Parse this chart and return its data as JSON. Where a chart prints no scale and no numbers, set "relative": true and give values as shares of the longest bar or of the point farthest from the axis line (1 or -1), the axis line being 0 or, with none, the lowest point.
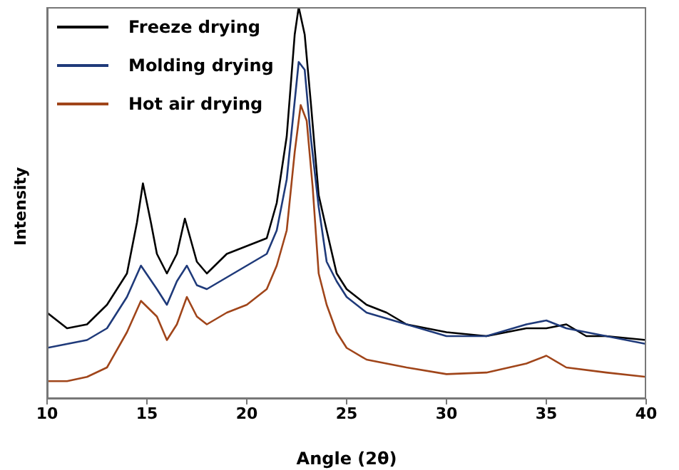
{
  "chart_data": {
    "type": "line",
    "relative": true,
    "xlabel": "Angle (2θ)",
    "ylabel": "Intensity",
    "xlim": [
      10,
      40
    ],
    "xticks": [
      10,
      15,
      20,
      25,
      30,
      35,
      40
    ],
    "legend": "top left",
    "marker": "none",
    "line_style": "solid",
    "series": [
      {
        "name": "Freeze drying",
        "color": "#000000",
        "x": [
          10,
          11,
          12,
          13,
          14,
          14.5,
          14.8,
          15.2,
          15.5,
          16,
          16.5,
          16.9,
          17.5,
          18,
          19,
          20,
          21,
          21.5,
          22,
          22.4,
          22.6,
          22.9,
          23.2,
          23.6,
          24,
          24.5,
          25,
          26,
          27,
          28,
          30,
          32,
          34,
          35,
          36,
          37,
          38,
          40
        ],
        "values": [
          0.22,
          0.18,
          0.19,
          0.24,
          0.32,
          0.45,
          0.55,
          0.45,
          0.37,
          0.32,
          0.37,
          0.46,
          0.35,
          0.32,
          0.37,
          0.39,
          0.41,
          0.5,
          0.67,
          0.93,
          1.0,
          0.93,
          0.76,
          0.52,
          0.43,
          0.32,
          0.28,
          0.24,
          0.22,
          0.19,
          0.17,
          0.16,
          0.18,
          0.18,
          0.19,
          0.16,
          0.16,
          0.15
        ]
      },
      {
        "name": "Molding drying",
        "color": "#1f3a7a",
        "x": [
          10,
          11,
          12,
          13,
          14,
          14.7,
          15.5,
          16,
          16.5,
          17,
          17.5,
          18,
          19,
          20,
          21,
          21.5,
          22,
          22.6,
          22.9,
          23.2,
          23.6,
          24,
          24.5,
          25,
          26,
          28,
          30,
          32,
          34,
          35,
          36,
          38,
          40
        ],
        "values": [
          0.13,
          0.14,
          0.15,
          0.18,
          0.26,
          0.34,
          0.28,
          0.24,
          0.3,
          0.34,
          0.29,
          0.28,
          0.31,
          0.34,
          0.37,
          0.43,
          0.56,
          0.86,
          0.84,
          0.67,
          0.49,
          0.35,
          0.3,
          0.26,
          0.22,
          0.19,
          0.16,
          0.16,
          0.19,
          0.2,
          0.18,
          0.16,
          0.14
        ]
      },
      {
        "name": "Hot air drying",
        "color": "#a0451a",
        "x": [
          10,
          11,
          12,
          13,
          14,
          14.7,
          15.5,
          16,
          16.5,
          17,
          17.5,
          18,
          19,
          20,
          21,
          21.5,
          22,
          22.4,
          22.7,
          23,
          23.3,
          23.6,
          24,
          24.5,
          25,
          26,
          28,
          30,
          32,
          34,
          35,
          36,
          38,
          40
        ],
        "values": [
          0.045,
          0.045,
          0.056,
          0.08,
          0.17,
          0.25,
          0.21,
          0.15,
          0.19,
          0.26,
          0.21,
          0.19,
          0.22,
          0.24,
          0.28,
          0.34,
          0.43,
          0.63,
          0.75,
          0.71,
          0.54,
          0.32,
          0.24,
          0.17,
          0.13,
          0.1,
          0.08,
          0.063,
          0.067,
          0.09,
          0.11,
          0.08,
          0.067,
          0.056
        ]
      }
    ]
  }
}
